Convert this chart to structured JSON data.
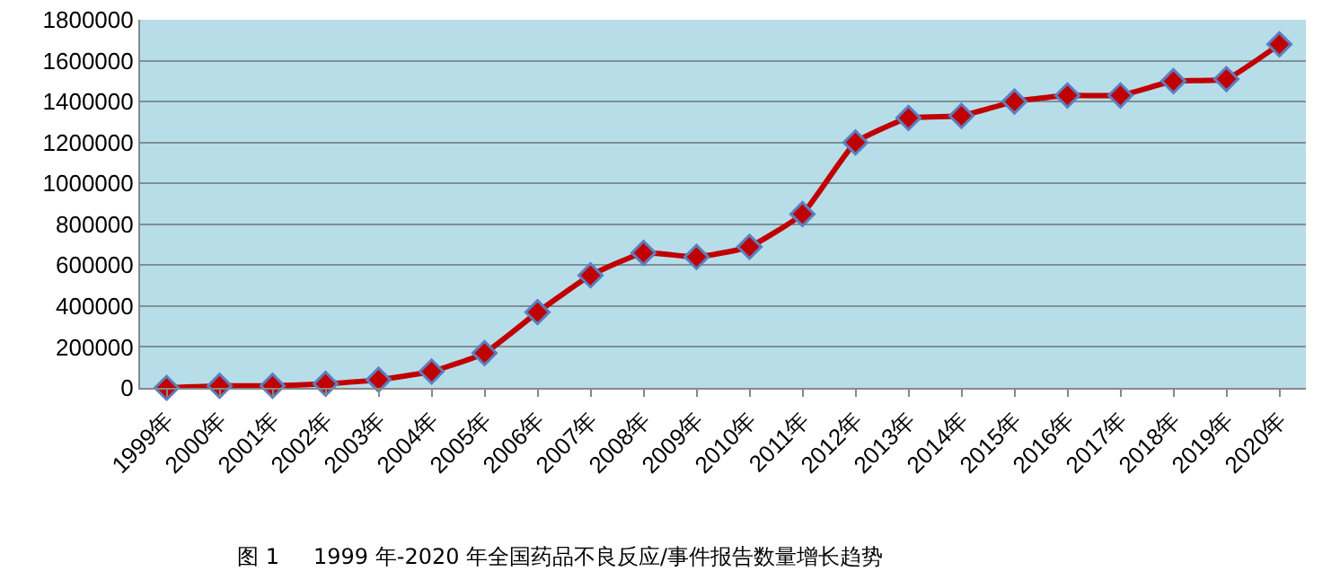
{
  "chart_data": {
    "type": "line",
    "categories": [
      "1999年",
      "2000年",
      "2001年",
      "2002年",
      "2003年",
      "2004年",
      "2005年",
      "2006年",
      "2007年",
      "2008年",
      "2009年",
      "2010年",
      "2011年",
      "2012年",
      "2013年",
      "2014年",
      "2015年",
      "2016年",
      "2017年",
      "2018年",
      "2019年",
      "2020年"
    ],
    "series": [
      {
        "color": "#c00000",
        "values": [
          0,
          10000,
          10000,
          20000,
          40000,
          80000,
          170000,
          370000,
          550000,
          660000,
          640000,
          690000,
          850000,
          1200000,
          1320000,
          1330000,
          1400000,
          1430000,
          1430000,
          1500000,
          1510000,
          1680000
        ]
      }
    ],
    "ylim": [
      0,
      1800000
    ],
    "yticks": [
      0,
      200000,
      400000,
      600000,
      800000,
      1000000,
      1200000,
      1400000,
      1600000,
      1800000
    ],
    "grid": "y",
    "marker": "diamond",
    "line_style": "solid",
    "annotations": [
      "图 1     1999 年-2020 年全国药品不良反应/事件报告数量增长趋势"
    ]
  }
}
